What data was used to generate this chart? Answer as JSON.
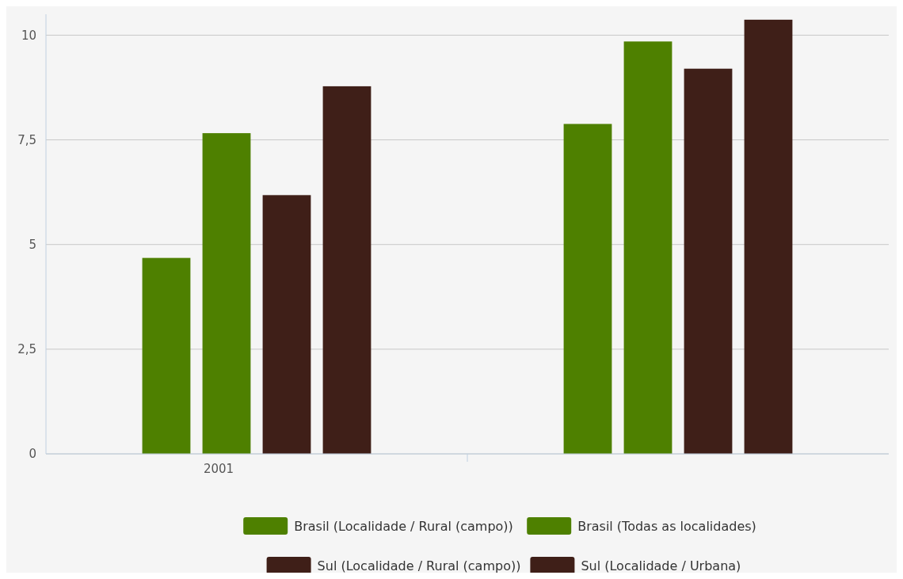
{
  "chart_data": {
    "type": "bar",
    "categories": [
      "2001",
      null
    ],
    "series": [
      {
        "name": "Brasil (Localidade / Rural (campo))",
        "color": "#4e8000",
        "values": [
          4.68,
          7.88
        ]
      },
      {
        "name": "Brasil (Todas as localidades)",
        "color": "#4e8000",
        "values": [
          7.66,
          9.85
        ]
      },
      {
        "name": "Sul (Localidade / Rural (campo))",
        "color": "#3f1f18",
        "values": [
          6.18,
          9.2
        ]
      },
      {
        "name": "Sul (Localidade / Urbana)",
        "color": "#3f1f18",
        "values": [
          8.78,
          10.37
        ]
      }
    ],
    "ylim": [
      0,
      10.5
    ],
    "yticks": [
      0,
      {
        "value": 2.5,
        "label": "2,5"
      },
      5,
      {
        "value": 7.5,
        "label": "7,5"
      },
      10
    ],
    "grid": "y",
    "legend": "bottom"
  }
}
